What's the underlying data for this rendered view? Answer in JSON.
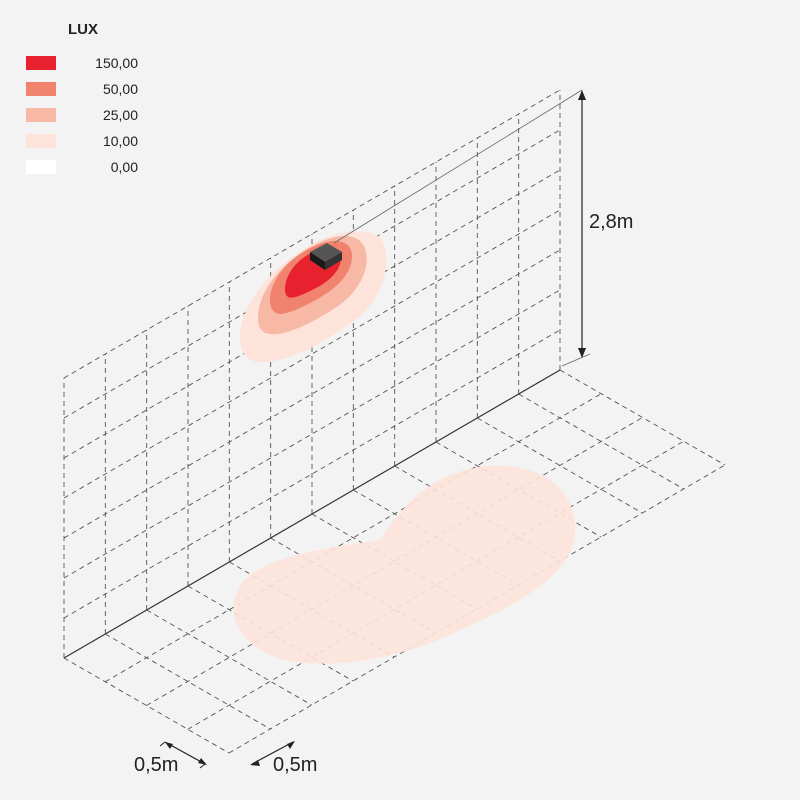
{
  "legend": {
    "title": "LUX",
    "items": [
      {
        "label": "150,00",
        "color": "#e8212e"
      },
      {
        "label": "50,00",
        "color": "#f0826e"
      },
      {
        "label": "25,00",
        "color": "#f7b9a6"
      },
      {
        "label": "10,00",
        "color": "#fde3da"
      },
      {
        "label": "0,00",
        "color": "#ffffff"
      }
    ]
  },
  "dimensions": {
    "height": "2,8m",
    "depth_cell": "0,5m",
    "width_cell": "0,5m"
  },
  "colors": {
    "background": "#f3f3f3",
    "grid": "#555555",
    "fixture": "#1a1a1a"
  }
}
